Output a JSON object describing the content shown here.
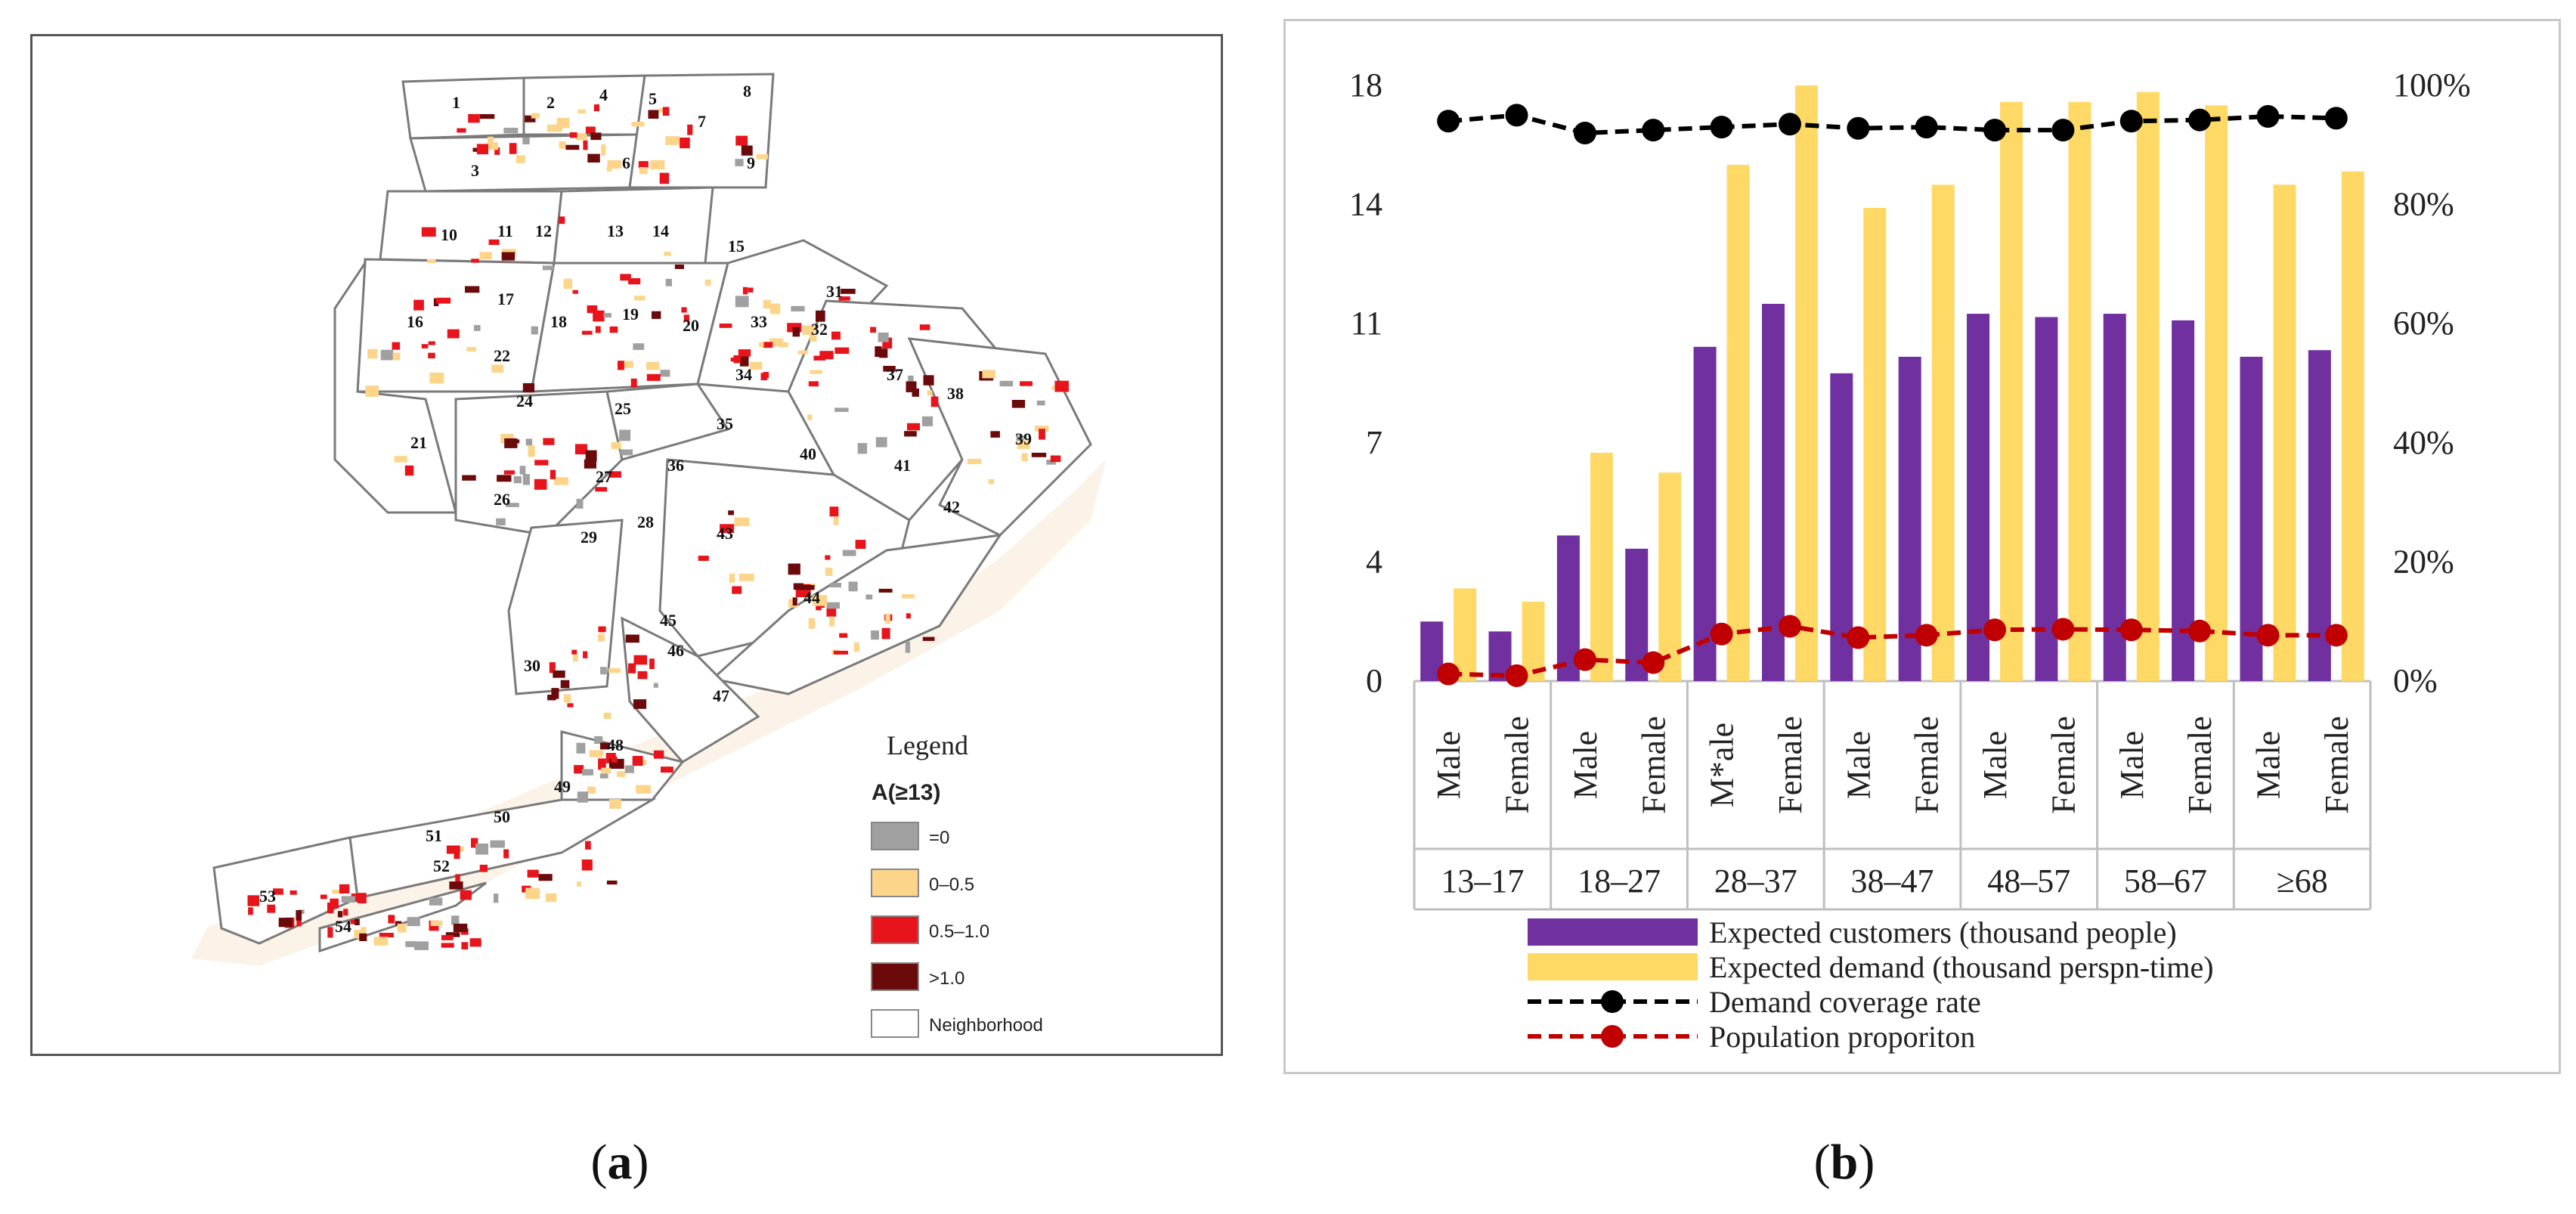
{
  "captions": {
    "a": "a",
    "b": "b"
  },
  "map": {
    "legend_title": "Legend",
    "legend_subtitle": "A(≥13)",
    "legend_items": [
      {
        "label": "=0",
        "color": "#a0a0a0"
      },
      {
        "label": "0–0.5",
        "color": "#fcd58a"
      },
      {
        "label": "0.5–1.0",
        "color": "#e8141c"
      },
      {
        "label": ">1.0",
        "color": "#6b0a0a"
      },
      {
        "label": "Neighborhood",
        "color": "#ffffff"
      }
    ],
    "neighborhood_labels": [
      "1",
      "2",
      "3",
      "4",
      "5",
      "6",
      "7",
      "8",
      "9",
      "10",
      "11",
      "12",
      "13",
      "14",
      "15",
      "16",
      "17",
      "18",
      "19",
      "20",
      "21",
      "22",
      "24",
      "25",
      "26",
      "27",
      "28",
      "29",
      "30",
      "31",
      "32",
      "33",
      "34",
      "35",
      "36",
      "37",
      "38",
      "39",
      "40",
      "41",
      "42",
      "43",
      "44",
      "45",
      "46",
      "47",
      "48",
      "49",
      "50",
      "51",
      "52",
      "53",
      "54"
    ]
  },
  "chart_data": {
    "type": "bar",
    "y_ticks_left": [
      "0",
      "4",
      "7",
      "11",
      "14",
      "18"
    ],
    "y_ticks_right": [
      "0%",
      "20%",
      "40%",
      "60%",
      "80%",
      "100%"
    ],
    "ylim_left": [
      0,
      18
    ],
    "ylim_right": [
      0,
      100
    ],
    "categories": [
      "Male",
      "Female",
      "Male",
      "Female",
      "M*ale",
      "Female",
      "Male",
      "Female",
      "Male",
      "Female",
      "Male",
      "Female",
      "Male",
      "Female"
    ],
    "groups": [
      "13–17",
      "18–27",
      "28–37",
      "38–47",
      "48–57",
      "58–67",
      "≥68"
    ],
    "series": [
      {
        "name": "Expected customers (thousand people)",
        "kind": "bar",
        "axis": "left",
        "color": "#7030a0",
        "values": [
          1.8,
          1.5,
          4.4,
          4.0,
          10.1,
          11.4,
          9.3,
          9.8,
          11.1,
          11.0,
          11.1,
          10.9,
          9.8,
          10.0
        ]
      },
      {
        "name": "Expected demand (thousand perspn-time)",
        "kind": "bar",
        "axis": "left",
        "color": "#ffd966",
        "values": [
          2.8,
          2.4,
          6.9,
          6.3,
          15.6,
          18.0,
          14.3,
          15.0,
          17.5,
          17.5,
          17.8,
          17.4,
          15.0,
          15.4
        ]
      },
      {
        "name": "Demand coverage rate",
        "kind": "line",
        "axis": "right",
        "color": "#000000",
        "values": [
          94,
          95,
          92,
          92.5,
          93,
          93.5,
          92.8,
          93,
          92.5,
          92.5,
          94,
          94.2,
          94.8,
          94.5
        ]
      },
      {
        "name": "Population proporiton",
        "kind": "line",
        "axis": "right",
        "color": "#c00000",
        "values": [
          1.2,
          0.9,
          3.6,
          3.1,
          7.9,
          9.2,
          7.3,
          7.7,
          8.6,
          8.7,
          8.6,
          8.4,
          7.7,
          7.7
        ]
      }
    ],
    "grid": false,
    "legend_position": "bottom"
  }
}
